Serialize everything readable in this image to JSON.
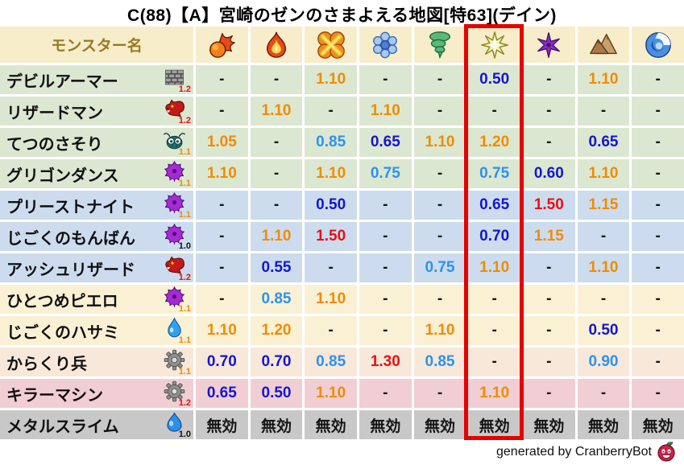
{
  "title": "C(88)【A】宮崎のゼンのさまよえる地図[特63](デイン)",
  "header": {
    "monster_col_label": "モンスター名",
    "element_icons": [
      "fireball-icon",
      "flame-icon",
      "bang-icon",
      "snowflake-icon",
      "tornado-icon",
      "zap-icon",
      "pinwheel-icon",
      "mountain-icon",
      "wave-icon"
    ],
    "highlighted_index": 5
  },
  "chart_data": {
    "type": "table",
    "title": "C(88)【A】宮崎のゼンのさまよえる地図[特63](デイン)",
    "columns": [
      "fireball",
      "flame",
      "bang",
      "snowflake",
      "tornado",
      "zap",
      "pinwheel",
      "mountain",
      "wave"
    ],
    "highlighted_column": "zap",
    "rows": [
      {
        "name": "デビルアーマー",
        "family_icon": "brick-icon",
        "boost": "1.2",
        "boost_color": "red",
        "row_bg": "green",
        "cells": [
          {
            "t": "-",
            "c": "plain"
          },
          {
            "t": "-",
            "c": "plain"
          },
          {
            "t": "1.10",
            "c": "orange"
          },
          {
            "t": "-",
            "c": "plain"
          },
          {
            "t": "-",
            "c": "plain"
          },
          {
            "t": "0.50",
            "c": "darkblue"
          },
          {
            "t": "-",
            "c": "plain"
          },
          {
            "t": "1.10",
            "c": "orange"
          },
          {
            "t": "-",
            "c": "plain"
          }
        ]
      },
      {
        "name": "リザードマン",
        "family_icon": "dragon-icon",
        "boost": "1.2",
        "boost_color": "red",
        "row_bg": "green",
        "cells": [
          {
            "t": "-",
            "c": "plain"
          },
          {
            "t": "1.10",
            "c": "orange"
          },
          {
            "t": "-",
            "c": "plain"
          },
          {
            "t": "1.10",
            "c": "orange"
          },
          {
            "t": "-",
            "c": "plain"
          },
          {
            "t": "-",
            "c": "plain"
          },
          {
            "t": "-",
            "c": "plain"
          },
          {
            "t": "-",
            "c": "plain"
          },
          {
            "t": "-",
            "c": "plain"
          }
        ]
      },
      {
        "name": "てつのさそり",
        "family_icon": "scorpion-icon",
        "boost": "1.1",
        "boost_color": "orange",
        "row_bg": "green",
        "cells": [
          {
            "t": "1.05",
            "c": "orange"
          },
          {
            "t": "-",
            "c": "plain"
          },
          {
            "t": "0.85",
            "c": "lightblue"
          },
          {
            "t": "0.65",
            "c": "darkblue"
          },
          {
            "t": "1.10",
            "c": "orange"
          },
          {
            "t": "1.20",
            "c": "orange"
          },
          {
            "t": "-",
            "c": "plain"
          },
          {
            "t": "0.65",
            "c": "darkblue"
          },
          {
            "t": "-",
            "c": "plain"
          }
        ]
      },
      {
        "name": "グリゴンダンス",
        "family_icon": "demon-icon",
        "boost": "1.1",
        "boost_color": "orange",
        "row_bg": "green",
        "cells": [
          {
            "t": "1.10",
            "c": "orange"
          },
          {
            "t": "-",
            "c": "plain"
          },
          {
            "t": "1.10",
            "c": "orange"
          },
          {
            "t": "0.75",
            "c": "lightblue"
          },
          {
            "t": "-",
            "c": "plain"
          },
          {
            "t": "0.75",
            "c": "lightblue"
          },
          {
            "t": "0.60",
            "c": "darkblue"
          },
          {
            "t": "1.10",
            "c": "orange"
          },
          {
            "t": "-",
            "c": "plain"
          }
        ]
      },
      {
        "name": "プリーストナイト",
        "family_icon": "demon-icon",
        "boost": "1.1",
        "boost_color": "orange",
        "row_bg": "blue",
        "cells": [
          {
            "t": "-",
            "c": "plain"
          },
          {
            "t": "-",
            "c": "plain"
          },
          {
            "t": "0.50",
            "c": "darkblue"
          },
          {
            "t": "-",
            "c": "plain"
          },
          {
            "t": "-",
            "c": "plain"
          },
          {
            "t": "0.65",
            "c": "darkblue"
          },
          {
            "t": "1.50",
            "c": "red"
          },
          {
            "t": "1.15",
            "c": "orange"
          },
          {
            "t": "-",
            "c": "plain"
          }
        ]
      },
      {
        "name": "じごくのもんばん",
        "family_icon": "demon-icon",
        "boost": "1.0",
        "boost_color": "plain",
        "row_bg": "blue",
        "cells": [
          {
            "t": "-",
            "c": "plain"
          },
          {
            "t": "1.10",
            "c": "orange"
          },
          {
            "t": "1.50",
            "c": "red"
          },
          {
            "t": "-",
            "c": "plain"
          },
          {
            "t": "-",
            "c": "plain"
          },
          {
            "t": "0.70",
            "c": "darkblue"
          },
          {
            "t": "1.15",
            "c": "orange"
          },
          {
            "t": "-",
            "c": "plain"
          },
          {
            "t": "-",
            "c": "plain"
          }
        ]
      },
      {
        "name": "アッシュリザード",
        "family_icon": "dragon-icon",
        "boost": "1.2",
        "boost_color": "red",
        "row_bg": "blue",
        "cells": [
          {
            "t": "-",
            "c": "plain"
          },
          {
            "t": "0.55",
            "c": "darkblue"
          },
          {
            "t": "-",
            "c": "plain"
          },
          {
            "t": "-",
            "c": "plain"
          },
          {
            "t": "0.75",
            "c": "lightblue"
          },
          {
            "t": "1.10",
            "c": "orange"
          },
          {
            "t": "-",
            "c": "plain"
          },
          {
            "t": "1.10",
            "c": "orange"
          },
          {
            "t": "-",
            "c": "plain"
          }
        ]
      },
      {
        "name": "ひとつめピエロ",
        "family_icon": "demon-icon",
        "boost": "1.1",
        "boost_color": "orange",
        "row_bg": "cream",
        "cells": [
          {
            "t": "-",
            "c": "plain"
          },
          {
            "t": "0.85",
            "c": "lightblue"
          },
          {
            "t": "1.10",
            "c": "orange"
          },
          {
            "t": "-",
            "c": "plain"
          },
          {
            "t": "-",
            "c": "plain"
          },
          {
            "t": "-",
            "c": "plain"
          },
          {
            "t": "-",
            "c": "plain"
          },
          {
            "t": "-",
            "c": "plain"
          },
          {
            "t": "-",
            "c": "plain"
          }
        ]
      },
      {
        "name": "じごくのハサミ",
        "family_icon": "waterdrop-icon",
        "boost": "1.1",
        "boost_color": "orange",
        "row_bg": "cream",
        "cells": [
          {
            "t": "1.10",
            "c": "orange"
          },
          {
            "t": "1.20",
            "c": "orange"
          },
          {
            "t": "-",
            "c": "plain"
          },
          {
            "t": "-",
            "c": "plain"
          },
          {
            "t": "1.10",
            "c": "orange"
          },
          {
            "t": "-",
            "c": "plain"
          },
          {
            "t": "-",
            "c": "plain"
          },
          {
            "t": "0.50",
            "c": "darkblue"
          },
          {
            "t": "-",
            "c": "plain"
          }
        ]
      },
      {
        "name": "からくり兵",
        "family_icon": "gear-icon",
        "boost": "1.1",
        "boost_color": "orange",
        "row_bg": "peach",
        "cells": [
          {
            "t": "0.70",
            "c": "darkblue"
          },
          {
            "t": "0.70",
            "c": "darkblue"
          },
          {
            "t": "0.85",
            "c": "lightblue"
          },
          {
            "t": "1.30",
            "c": "red"
          },
          {
            "t": "0.85",
            "c": "lightblue"
          },
          {
            "t": "-",
            "c": "plain"
          },
          {
            "t": "-",
            "c": "plain"
          },
          {
            "t": "0.90",
            "c": "lightblue"
          },
          {
            "t": "-",
            "c": "plain"
          }
        ]
      },
      {
        "name": "キラーマシン",
        "family_icon": "gear-icon",
        "boost": "1.2",
        "boost_color": "red",
        "row_bg": "pink",
        "cells": [
          {
            "t": "0.65",
            "c": "darkblue"
          },
          {
            "t": "0.50",
            "c": "darkblue"
          },
          {
            "t": "1.10",
            "c": "orange"
          },
          {
            "t": "-",
            "c": "plain"
          },
          {
            "t": "-",
            "c": "plain"
          },
          {
            "t": "1.10",
            "c": "orange"
          },
          {
            "t": "-",
            "c": "plain"
          },
          {
            "t": "-",
            "c": "plain"
          },
          {
            "t": "-",
            "c": "plain"
          }
        ]
      },
      {
        "name": "メタルスライム",
        "family_icon": "slime-icon",
        "boost": "1.0",
        "boost_color": "plain",
        "row_bg": "gray",
        "cells": [
          {
            "t": "無効",
            "c": "plain"
          },
          {
            "t": "無効",
            "c": "plain"
          },
          {
            "t": "無効",
            "c": "plain"
          },
          {
            "t": "無効",
            "c": "plain"
          },
          {
            "t": "無効",
            "c": "plain"
          },
          {
            "t": "無効",
            "c": "plain"
          },
          {
            "t": "無効",
            "c": "plain"
          },
          {
            "t": "無効",
            "c": "plain"
          },
          {
            "t": "無効",
            "c": "plain"
          }
        ]
      }
    ]
  },
  "footer": {
    "credit": "generated by CranberryBot",
    "icon": "cranberry-icon"
  },
  "colors": {
    "header_bg": "#f7edca",
    "header_text": "#9a7a22",
    "row_green": "#dbe7d1",
    "row_blue": "#ccdcee",
    "row_cream": "#faf0d4",
    "row_peach": "#f8e8da",
    "row_pink": "#f1ced3",
    "row_gray": "#c8c8c8",
    "value_orange": "#f08c00",
    "value_red": "#e81111",
    "value_lightblue": "#2b93ee",
    "value_darkblue": "#1515cf",
    "text_black": "#141414",
    "highlight_box": "#e60000"
  }
}
